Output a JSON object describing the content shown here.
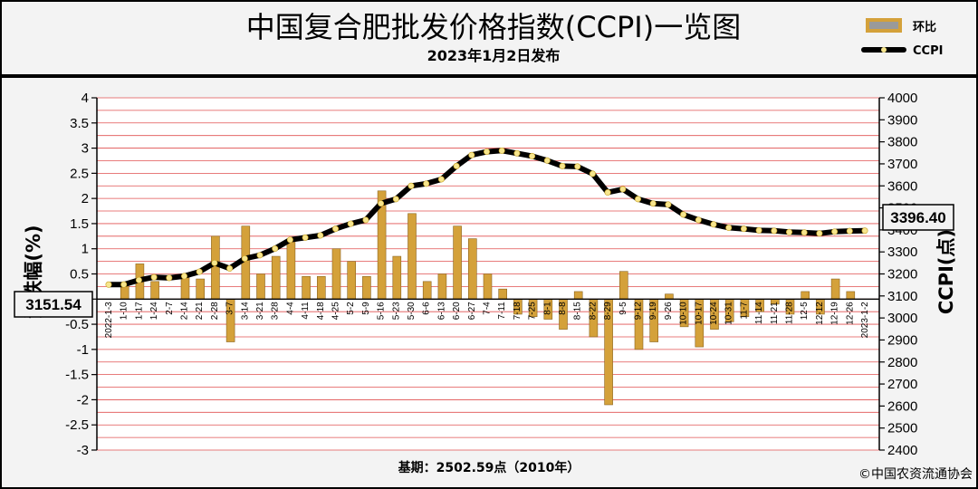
{
  "header": {
    "title": "中国复合肥批发价格指数(CCPI)一览图",
    "subtitle": "2023年1月2日发布"
  },
  "legend": {
    "bar_label": "环比",
    "line_label": "CCPI"
  },
  "axes": {
    "left_title": "涨跌幅(%)",
    "right_title": "CCPI(点)"
  },
  "callouts": {
    "left_value": "3151.54",
    "right_value": "3396.40"
  },
  "footer": {
    "base_text": "基期：2502.59点（2010年）",
    "copyright": "©中国农资流通协会"
  },
  "colors": {
    "bar": "#d4a13a",
    "line": "#000000",
    "marker": "#f6e58d",
    "grid": "#e05050",
    "plot_bg": "#ffffff"
  },
  "chart_data": {
    "type": "bar+line",
    "title": "中国复合肥批发价格指数(CCPI)一览图",
    "y_left": {
      "label": "涨跌幅(%)",
      "min": -3,
      "max": 4,
      "ticks": [
        "4",
        "3.5",
        "3",
        "2.5",
        "2",
        "1.5",
        "1",
        "0.5",
        "0",
        "-0.5",
        "-1",
        "-1.5",
        "-2",
        "-2.5",
        "-3"
      ]
    },
    "y_right": {
      "label": "CCPI(点)",
      "min": 2400,
      "max": 4000,
      "ticks": [
        "4000",
        "3900",
        "3800",
        "3700",
        "3600",
        "3500",
        "3400",
        "3300",
        "3200",
        "3100",
        "3000",
        "2900",
        "2800",
        "2700",
        "2600",
        "2500",
        "2400"
      ]
    },
    "x_labels": [
      "2022-1-3",
      "1-10",
      "1-17",
      "1-24",
      "2-7",
      "2-14",
      "2-21",
      "2-28",
      "3-7",
      "3-14",
      "3-21",
      "3-28",
      "4-4",
      "4-11",
      "4-18",
      "4-25",
      "5-2",
      "5-9",
      "5-16",
      "5-23",
      "5-30",
      "6-6",
      "6-13",
      "6-20",
      "6-27",
      "7-4",
      "7-11",
      "7-18",
      "7-25",
      "8-1",
      "8-8",
      "8-15",
      "8-22",
      "8-29",
      "9-5",
      "9-12",
      "9-19",
      "9-26",
      "10-10",
      "10-17",
      "10-24",
      "10-31",
      "11-7",
      "11-14",
      "11-21",
      "11-28",
      "12-5",
      "12-12",
      "12-19",
      "12-26",
      "2023-1-2"
    ],
    "grid": true,
    "legend_position": "top-right",
    "series": [
      {
        "name": "环比",
        "type": "bar",
        "axis": "left",
        "values": [
          0.0,
          0.3,
          0.7,
          0.35,
          0.0,
          0.45,
          0.4,
          1.25,
          -0.85,
          1.45,
          0.5,
          0.85,
          1.15,
          0.45,
          0.45,
          1.0,
          0.75,
          0.45,
          2.15,
          0.85,
          1.7,
          0.35,
          0.5,
          1.45,
          1.2,
          0.5,
          0.2,
          -0.3,
          -0.35,
          -0.4,
          -0.6,
          0.15,
          -0.75,
          -2.1,
          0.55,
          -1.0,
          -0.85,
          0.1,
          -0.55,
          -0.95,
          -0.6,
          -0.45,
          -0.35,
          -0.25,
          -0.1,
          -0.3,
          0.15,
          -0.3,
          0.4,
          0.15,
          0.0
        ]
      },
      {
        "name": "CCPI",
        "type": "line",
        "axis": "right",
        "values": [
          3151.54,
          3152,
          3172,
          3185,
          3182,
          3190,
          3210,
          3250,
          3225,
          3270,
          3285,
          3315,
          3355,
          3365,
          3375,
          3405,
          3428,
          3445,
          3520,
          3540,
          3600,
          3610,
          3630,
          3690,
          3740,
          3755,
          3760,
          3748,
          3735,
          3715,
          3690,
          3688,
          3655,
          3570,
          3585,
          3540,
          3520,
          3515,
          3470,
          3445,
          3425,
          3410,
          3405,
          3398,
          3396,
          3390,
          3388,
          3384,
          3392,
          3395,
          3396.4
        ]
      }
    ]
  }
}
